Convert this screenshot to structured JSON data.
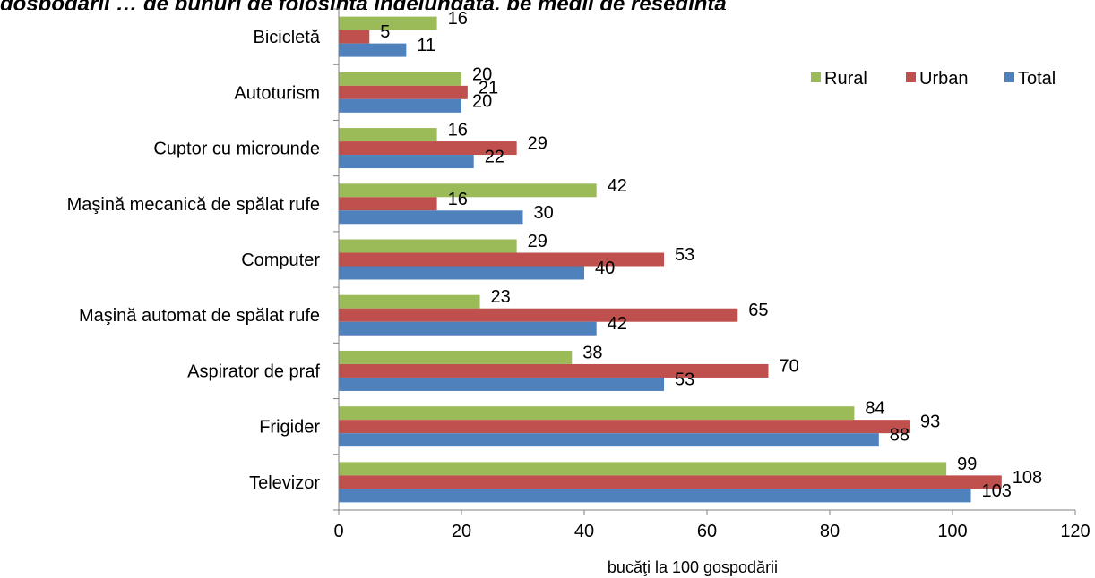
{
  "header": {
    "title_fragment": "gospodării … de bunuri de folosinţă îndelungată, pe medii de reşedinţă"
  },
  "chart_data": {
    "type": "bar",
    "orientation": "horizontal",
    "title": "",
    "xlabel": "bucăţi la 100 gospodării",
    "ylabel": "",
    "xlim": [
      0,
      120
    ],
    "xticks": [
      0,
      20,
      40,
      60,
      80,
      100,
      120
    ],
    "grid": false,
    "legend_position": "top-right",
    "categories": [
      "Bicicletă",
      "Autoturism",
      "Cuptor cu microunde",
      "Maşină mecanică de spălat rufe",
      "Computer",
      "Maşină automat de spălat rufe",
      "Aspirator de praf",
      "Frigider",
      "Televizor"
    ],
    "series": [
      {
        "name": "Rural",
        "color": "#9bbb59",
        "values": [
          16,
          20,
          16,
          42,
          29,
          23,
          38,
          84,
          99
        ]
      },
      {
        "name": "Urban",
        "color": "#c0504d",
        "values": [
          5,
          21,
          29,
          16,
          53,
          65,
          70,
          93,
          108
        ]
      },
      {
        "name": "Total",
        "color": "#4f81bd",
        "values": [
          11,
          20,
          22,
          30,
          40,
          42,
          53,
          88,
          103
        ]
      }
    ]
  }
}
